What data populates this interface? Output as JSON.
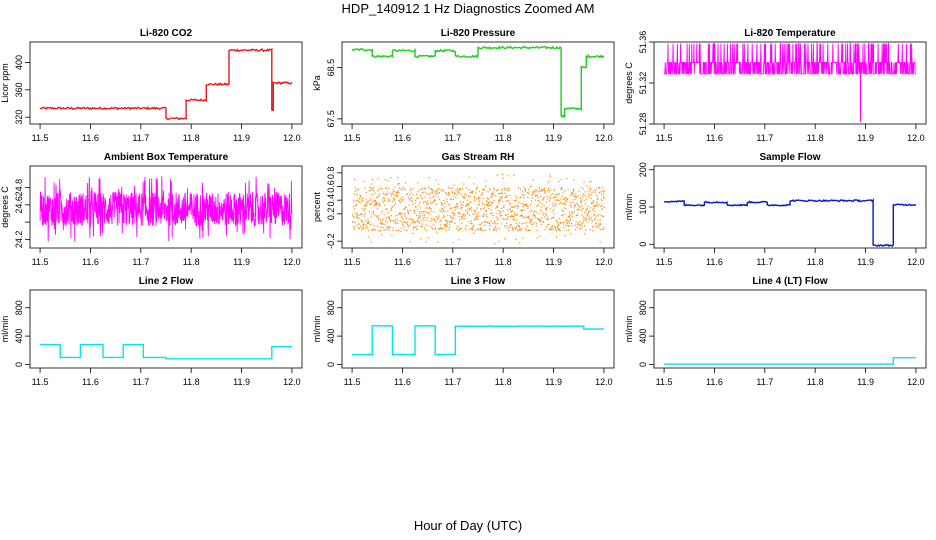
{
  "page": {
    "title": "HDP_140912  1 Hz Diagnostics Zoomed AM",
    "xlabel": "Hour of Day (UTC)"
  },
  "chart_data": [
    {
      "type": "line",
      "title": "Li-820 CO2",
      "ylabel": "Licor ppm",
      "color": "#e31a1c",
      "xlim": [
        11.5,
        12.0
      ],
      "ylim": [
        310,
        430
      ],
      "x_ticks": [
        "11.5",
        "11.6",
        "11.7",
        "11.8",
        "11.9",
        "12.0"
      ],
      "y_ticks": [
        320,
        360,
        400
      ],
      "y_tick_labels": [
        "320",
        "360",
        "400"
      ],
      "noise": 1.5,
      "segments": [
        [
          11.5,
          11.75,
          333
        ],
        [
          11.75,
          11.79,
          318
        ],
        [
          11.79,
          11.83,
          345
        ],
        [
          11.83,
          11.875,
          368
        ],
        [
          11.875,
          11.96,
          418
        ],
        [
          11.96,
          11.963,
          330
        ],
        [
          11.963,
          12.0,
          370
        ]
      ]
    },
    {
      "type": "line",
      "title": "Li-820 Pressure",
      "ylabel": "kPa",
      "color": "#1fcc1f",
      "xlim": [
        11.5,
        12.0
      ],
      "ylim": [
        67.4,
        69.0
      ],
      "x_ticks": [
        "11.5",
        "11.6",
        "11.7",
        "11.8",
        "11.9",
        "12.0"
      ],
      "y_ticks": [
        67.5,
        68.5
      ],
      "y_tick_labels": [
        "67.5",
        "68.5"
      ],
      "noise": 0.02,
      "segments": [
        [
          11.5,
          11.54,
          68.85
        ],
        [
          11.54,
          11.58,
          68.72
        ],
        [
          11.58,
          11.625,
          68.83
        ],
        [
          11.625,
          11.665,
          68.72
        ],
        [
          11.665,
          11.705,
          68.83
        ],
        [
          11.705,
          11.75,
          68.72
        ],
        [
          11.75,
          11.915,
          68.89
        ],
        [
          11.915,
          11.922,
          67.55
        ],
        [
          11.922,
          11.955,
          67.7
        ],
        [
          11.955,
          11.965,
          68.5
        ],
        [
          11.965,
          12.0,
          68.72
        ]
      ]
    },
    {
      "type": "line",
      "title": "Li-820 Temperature",
      "ylabel": "degrees C",
      "color": "#ff00ff",
      "xlim": [
        11.5,
        12.0
      ],
      "ylim": [
        51.28,
        51.36
      ],
      "x_ticks": [
        "11.5",
        "11.6",
        "11.7",
        "11.8",
        "11.9",
        "12.0"
      ],
      "y_ticks": [
        51.28,
        51.32,
        51.36
      ],
      "y_tick_labels": [
        "51.28",
        "51.32",
        "51.36"
      ],
      "mode": "toggle",
      "low": 51.3289,
      "high": 51.34,
      "spike": 51.3584
    },
    {
      "type": "line",
      "title": "Ambient Box Temperature",
      "ylabel": "degrees C",
      "color": "#ff00ff",
      "xlim": [
        11.5,
        12.0
      ],
      "ylim": [
        24.1,
        25.05
      ],
      "x_ticks": [
        "11.5",
        "11.6",
        "11.7",
        "11.8",
        "11.9",
        "12.0"
      ],
      "y_ticks": [
        24.2,
        24.4,
        24.6,
        24.8
      ],
      "y_tick_labels": [
        "24.2",
        "",
        "24.6",
        "24.8"
      ],
      "mode": "noise",
      "center": 24.55,
      "spread": 0.2
    },
    {
      "type": "scatter",
      "title": "Gas Stream RH",
      "ylabel": "percent",
      "color": "#ff8c00",
      "xlim": [
        11.5,
        12.0
      ],
      "ylim": [
        -0.3,
        0.9
      ],
      "x_ticks": [
        "11.5",
        "11.6",
        "11.7",
        "11.8",
        "11.9",
        "12.0"
      ],
      "y_ticks": [
        -0.2,
        0.2,
        0.4,
        0.6,
        0.8
      ],
      "y_tick_labels": [
        "-0.2",
        "0.2",
        "0.4",
        "0.6",
        "0.8"
      ],
      "mode": "dots",
      "center": 0.28,
      "spread": 0.32
    },
    {
      "type": "line",
      "title": "Sample Flow",
      "ylabel": "ml/min",
      "color": "#0018c8",
      "xlim": [
        11.5,
        12.0
      ],
      "ylim": [
        -10,
        210
      ],
      "x_ticks": [
        "11.5",
        "11.6",
        "11.7",
        "11.8",
        "11.9",
        "12.0"
      ],
      "y_ticks": [
        0,
        100,
        200
      ],
      "y_tick_labels": [
        "0",
        "100",
        "200"
      ],
      "noise": 2,
      "segments": [
        [
          11.5,
          11.54,
          115
        ],
        [
          11.54,
          11.58,
          105
        ],
        [
          11.58,
          11.625,
          113
        ],
        [
          11.625,
          11.665,
          105
        ],
        [
          11.665,
          11.705,
          113
        ],
        [
          11.705,
          11.75,
          105
        ],
        [
          11.75,
          11.915,
          117
        ],
        [
          11.915,
          11.955,
          -3
        ],
        [
          11.955,
          12.0,
          106
        ]
      ]
    },
    {
      "type": "line",
      "title": "Line 2 Flow",
      "ylabel": "ml/min",
      "color": "#00e5ee",
      "xlim": [
        11.5,
        12.0
      ],
      "ylim": [
        -50,
        1050
      ],
      "x_ticks": [
        "11.5",
        "11.6",
        "11.7",
        "11.8",
        "11.9",
        "12.0"
      ],
      "y_ticks": [
        0,
        400,
        800
      ],
      "y_tick_labels": [
        "0",
        "400",
        "800"
      ],
      "noise": 0,
      "segments": [
        [
          11.5,
          11.54,
          280
        ],
        [
          11.54,
          11.58,
          100
        ],
        [
          11.58,
          11.625,
          280
        ],
        [
          11.625,
          11.665,
          100
        ],
        [
          11.665,
          11.705,
          280
        ],
        [
          11.705,
          11.75,
          100
        ],
        [
          11.75,
          11.96,
          80
        ],
        [
          11.96,
          12.0,
          250
        ]
      ]
    },
    {
      "type": "line",
      "title": "Line 3 Flow",
      "ylabel": "ml/min",
      "color": "#00e5ee",
      "xlim": [
        11.5,
        12.0
      ],
      "ylim": [
        -50,
        1050
      ],
      "x_ticks": [
        "11.5",
        "11.6",
        "11.7",
        "11.8",
        "11.9",
        "12.0"
      ],
      "y_ticks": [
        0,
        400,
        800
      ],
      "y_tick_labels": [
        "0",
        "400",
        "800"
      ],
      "noise": 3,
      "segments": [
        [
          11.5,
          11.54,
          140
        ],
        [
          11.54,
          11.58,
          545
        ],
        [
          11.58,
          11.625,
          140
        ],
        [
          11.625,
          11.665,
          545
        ],
        [
          11.665,
          11.705,
          140
        ],
        [
          11.705,
          11.96,
          540
        ],
        [
          11.96,
          12.0,
          500
        ]
      ]
    },
    {
      "type": "line",
      "title": "Line 4 (LT) Flow",
      "ylabel": "ml/min",
      "color": "#00e5ee",
      "xlim": [
        11.5,
        12.0
      ],
      "ylim": [
        -50,
        1050
      ],
      "x_ticks": [
        "11.5",
        "11.6",
        "11.7",
        "11.8",
        "11.9",
        "12.0"
      ],
      "y_ticks": [
        0,
        400,
        800
      ],
      "y_tick_labels": [
        "0",
        "400",
        "800"
      ],
      "noise": 0,
      "segments": [
        [
          11.5,
          11.955,
          5
        ],
        [
          11.955,
          12.0,
          95
        ]
      ]
    }
  ]
}
